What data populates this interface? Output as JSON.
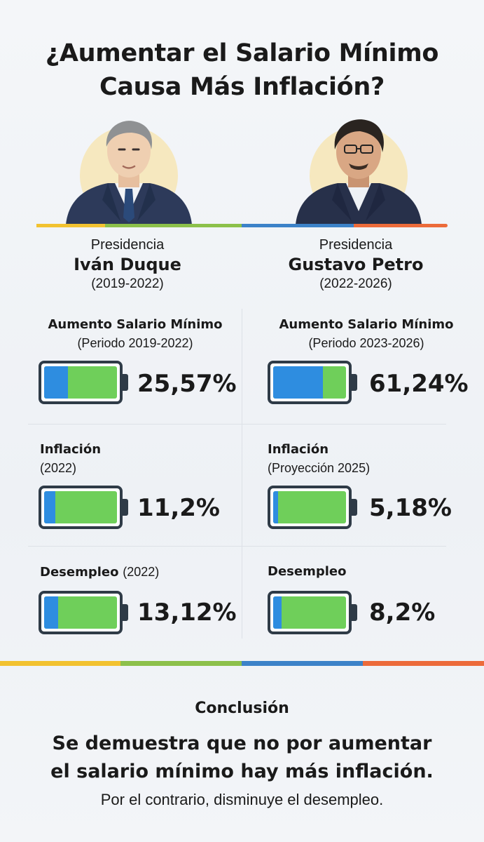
{
  "title_line1": "¿Aumentar el Salario Mínimo",
  "title_line2": "Causa Más Inflación?",
  "colors": {
    "yellow": "#f2c230",
    "green": "#8cc04a",
    "blue": "#3c82c8",
    "orange": "#ec6b3a",
    "battery_green": "#6fcf5a",
    "battery_blue": "#2e8de0"
  },
  "left": {
    "presidency_label": "Presidencia",
    "name": "Iván Duque",
    "period": "(2019-2022)",
    "stats": [
      {
        "label_bold": "Aumento Salario Mínimo",
        "label_sub": "(Periodo 2019-2022)",
        "value": "25,57%",
        "level": 0.33
      },
      {
        "label_bold": "Inflación",
        "label_sub": "(2022)",
        "value": "11,2%",
        "level": 0.15
      },
      {
        "label_bold": "Desempleo",
        "label_sub": "(2022)",
        "value": "13,12%",
        "level": 0.19
      }
    ]
  },
  "right": {
    "presidency_label": "Presidencia",
    "name": "Gustavo Petro",
    "period": "(2022-2026)",
    "stats": [
      {
        "label_bold": "Aumento Salario Mínimo",
        "label_sub": "(Periodo 2023-2026)",
        "value": "61,24%",
        "level": 0.68
      },
      {
        "label_bold": "Inflación",
        "label_sub": "(Proyección 2025)",
        "value": "5,18%",
        "level": 0.07
      },
      {
        "label_bold": "Desempleo",
        "label_sub": "",
        "value": "8,2%",
        "level": 0.12
      }
    ]
  },
  "conclusion": {
    "title": "Conclusión",
    "main_line1": "Se demuestra que no por aumentar",
    "main_line2": "el salario mínimo hay más inflación.",
    "sub": "Por el contrario, disminuye el desempleo."
  }
}
